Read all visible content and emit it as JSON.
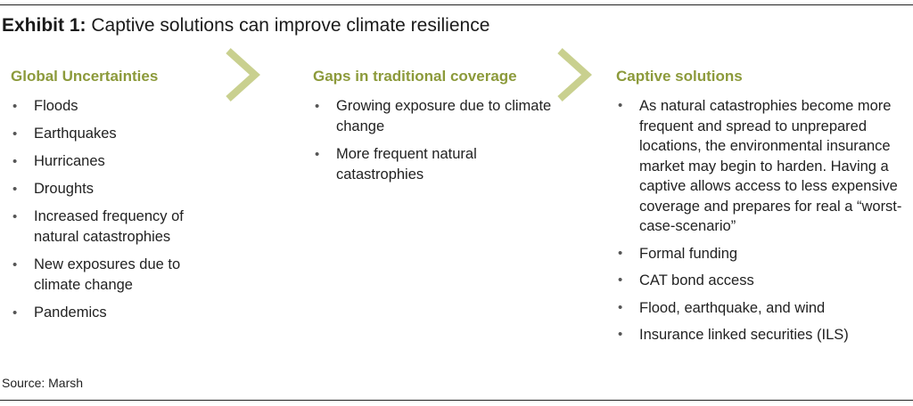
{
  "title": {
    "label": "Exhibit 1:",
    "text": "Captive solutions can improve climate resilience"
  },
  "columns": [
    {
      "heading": "Global Uncertainties",
      "items": [
        "Floods",
        "Earthquakes",
        "Hurricanes",
        "Droughts",
        "Increased frequency of natural catastrophies",
        "New exposures due to climate change",
        "Pandemics"
      ]
    },
    {
      "heading": "Gaps in traditional coverage",
      "items": [
        "Growing exposure due to climate change",
        "More frequent natural catastrophies"
      ]
    },
    {
      "heading": "Captive solutions",
      "items": [
        "As natural catastrophies become more frequent and spread to unprepared locations, the environmental insurance market may begin to harden. Having a captive allows access to less expensive coverage and prepares for real a “worst-case-scenario”",
        "Formal funding",
        "CAT bond access",
        "Flood, earthquake, and wind",
        "Insurance linked securities (ILS)"
      ]
    }
  ],
  "source": "Source: Marsh",
  "colors": {
    "accent": "#8c9a3b",
    "chevron": "#c9d08f",
    "rule": "#222222"
  },
  "icons": [
    "chevron-right-icon",
    "chevron-right-icon"
  ]
}
